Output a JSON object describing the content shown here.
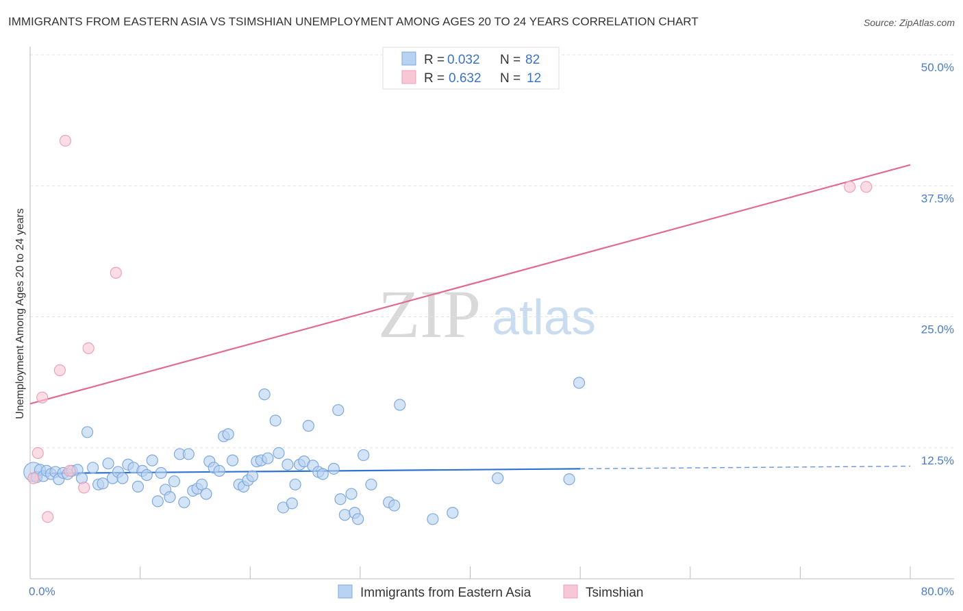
{
  "header": {
    "title": "IMMIGRANTS FROM EASTERN ASIA VS TSIMSHIAN UNEMPLOYMENT AMONG AGES 20 TO 24 YEARS CORRELATION CHART",
    "source": "Source: ZipAtlas.com"
  },
  "watermark": {
    "zip": "ZIP",
    "atlas": "atlas"
  },
  "legend_top": {
    "rows": [
      {
        "r_label": "R = ",
        "r_value": "0.032",
        "n_label": "N = ",
        "n_value": "82"
      },
      {
        "r_label": "R = ",
        "r_value": "0.632",
        "n_label": "N = ",
        "n_value": "12"
      }
    ]
  },
  "legend_bottom": {
    "items": [
      {
        "label": "Immigrants from Eastern Asia"
      },
      {
        "label": "Tsimshian"
      }
    ]
  },
  "chart_data": {
    "type": "scatter",
    "title": "IMMIGRANTS FROM EASTERN ASIA VS TSIMSHIAN UNEMPLOYMENT AMONG AGES 20 TO 24 YEARS CORRELATION CHART",
    "xlabel": "",
    "ylabel": "Unemployment Among Ages 20 to 24 years",
    "xlim": [
      0,
      80
    ],
    "ylim": [
      0,
      50
    ],
    "x_tick_labels": [
      "0.0%",
      "80.0%"
    ],
    "y_ticks": [
      12.5,
      25.0,
      37.5,
      50.0
    ],
    "y_tick_labels": [
      "12.5%",
      "25.0%",
      "37.5%",
      "50.0%"
    ],
    "grid": true,
    "legend_position": "top-center",
    "colors": {
      "series1_fill": "#b8d2f2",
      "series1_stroke": "#7fa8de",
      "series1_line": "#2f72d0",
      "series2_fill": "#f8c6d4",
      "series2_stroke": "#eea0b8",
      "series2_line": "#e06a94",
      "tick_label": "#4a7cc7",
      "grid": "#e3e3e3"
    },
    "series": [
      {
        "name": "Immigrants from Eastern Asia",
        "R": 0.032,
        "N": 82,
        "trend": {
          "x_start": 0,
          "y_start": 10.05,
          "x_solid_end": 50,
          "y_solid_end": 10.5,
          "x_end": 80,
          "y_end": 10.75
        },
        "points": [
          [
            0.3,
            10.2
          ],
          [
            0.6,
            9.7
          ],
          [
            0.9,
            10.4
          ],
          [
            1.2,
            9.8
          ],
          [
            1.5,
            10.3
          ],
          [
            1.9,
            10.0
          ],
          [
            2.3,
            10.2
          ],
          [
            2.6,
            9.5
          ],
          [
            3.0,
            10.1
          ],
          [
            3.4,
            10.0
          ],
          [
            3.8,
            10.3
          ],
          [
            4.3,
            10.4
          ],
          [
            4.7,
            9.6
          ],
          [
            5.2,
            14.0
          ],
          [
            5.7,
            10.6
          ],
          [
            6.2,
            9.0
          ],
          [
            6.6,
            9.1
          ],
          [
            7.1,
            11.0
          ],
          [
            7.5,
            9.6
          ],
          [
            8.0,
            10.2
          ],
          [
            8.4,
            9.6
          ],
          [
            8.9,
            10.9
          ],
          [
            9.4,
            10.6
          ],
          [
            9.8,
            8.8
          ],
          [
            10.2,
            10.3
          ],
          [
            10.6,
            9.9
          ],
          [
            11.1,
            11.3
          ],
          [
            11.6,
            7.4
          ],
          [
            11.9,
            10.1
          ],
          [
            12.3,
            8.5
          ],
          [
            12.7,
            7.8
          ],
          [
            13.1,
            9.3
          ],
          [
            13.6,
            11.9
          ],
          [
            14.0,
            7.3
          ],
          [
            14.4,
            11.9
          ],
          [
            14.8,
            8.4
          ],
          [
            15.2,
            8.6
          ],
          [
            15.6,
            9.0
          ],
          [
            16.0,
            8.1
          ],
          [
            16.3,
            11.2
          ],
          [
            16.7,
            10.6
          ],
          [
            17.2,
            10.3
          ],
          [
            17.6,
            13.6
          ],
          [
            18.0,
            13.8
          ],
          [
            18.4,
            11.3
          ],
          [
            19.0,
            9.0
          ],
          [
            19.4,
            8.8
          ],
          [
            19.8,
            9.4
          ],
          [
            20.2,
            9.8
          ],
          [
            20.6,
            11.2
          ],
          [
            21.0,
            11.3
          ],
          [
            21.3,
            17.6
          ],
          [
            21.6,
            11.5
          ],
          [
            22.3,
            15.1
          ],
          [
            22.6,
            12.0
          ],
          [
            23.0,
            6.8
          ],
          [
            23.4,
            10.9
          ],
          [
            23.8,
            7.2
          ],
          [
            24.1,
            9.0
          ],
          [
            24.5,
            10.9
          ],
          [
            24.9,
            11.2
          ],
          [
            25.3,
            14.6
          ],
          [
            25.7,
            10.8
          ],
          [
            26.2,
            10.2
          ],
          [
            26.6,
            10.0
          ],
          [
            27.6,
            10.5
          ],
          [
            28.0,
            16.1
          ],
          [
            28.2,
            7.6
          ],
          [
            28.6,
            6.1
          ],
          [
            29.2,
            8.1
          ],
          [
            29.5,
            6.3
          ],
          [
            29.8,
            5.7
          ],
          [
            30.3,
            11.8
          ],
          [
            31.0,
            9.0
          ],
          [
            32.6,
            7.3
          ],
          [
            33.1,
            7.0
          ],
          [
            33.6,
            16.6
          ],
          [
            36.6,
            5.7
          ],
          [
            38.4,
            6.3
          ],
          [
            42.5,
            9.6
          ],
          [
            49.0,
            9.5
          ],
          [
            49.9,
            18.7
          ]
        ]
      },
      {
        "name": "Tsimshian",
        "R": 0.632,
        "N": 12,
        "trend": {
          "x_start": 0,
          "y_start": 16.7,
          "x_end": 80,
          "y_end": 39.5
        },
        "points": [
          [
            0.3,
            9.6
          ],
          [
            0.7,
            12.0
          ],
          [
            1.1,
            17.3
          ],
          [
            1.6,
            5.9
          ],
          [
            2.7,
            19.9
          ],
          [
            3.2,
            41.8
          ],
          [
            3.6,
            10.3
          ],
          [
            4.9,
            8.7
          ],
          [
            5.3,
            22.0
          ],
          [
            7.8,
            29.2
          ],
          [
            74.5,
            37.4
          ],
          [
            76.0,
            37.4
          ]
        ]
      }
    ]
  }
}
